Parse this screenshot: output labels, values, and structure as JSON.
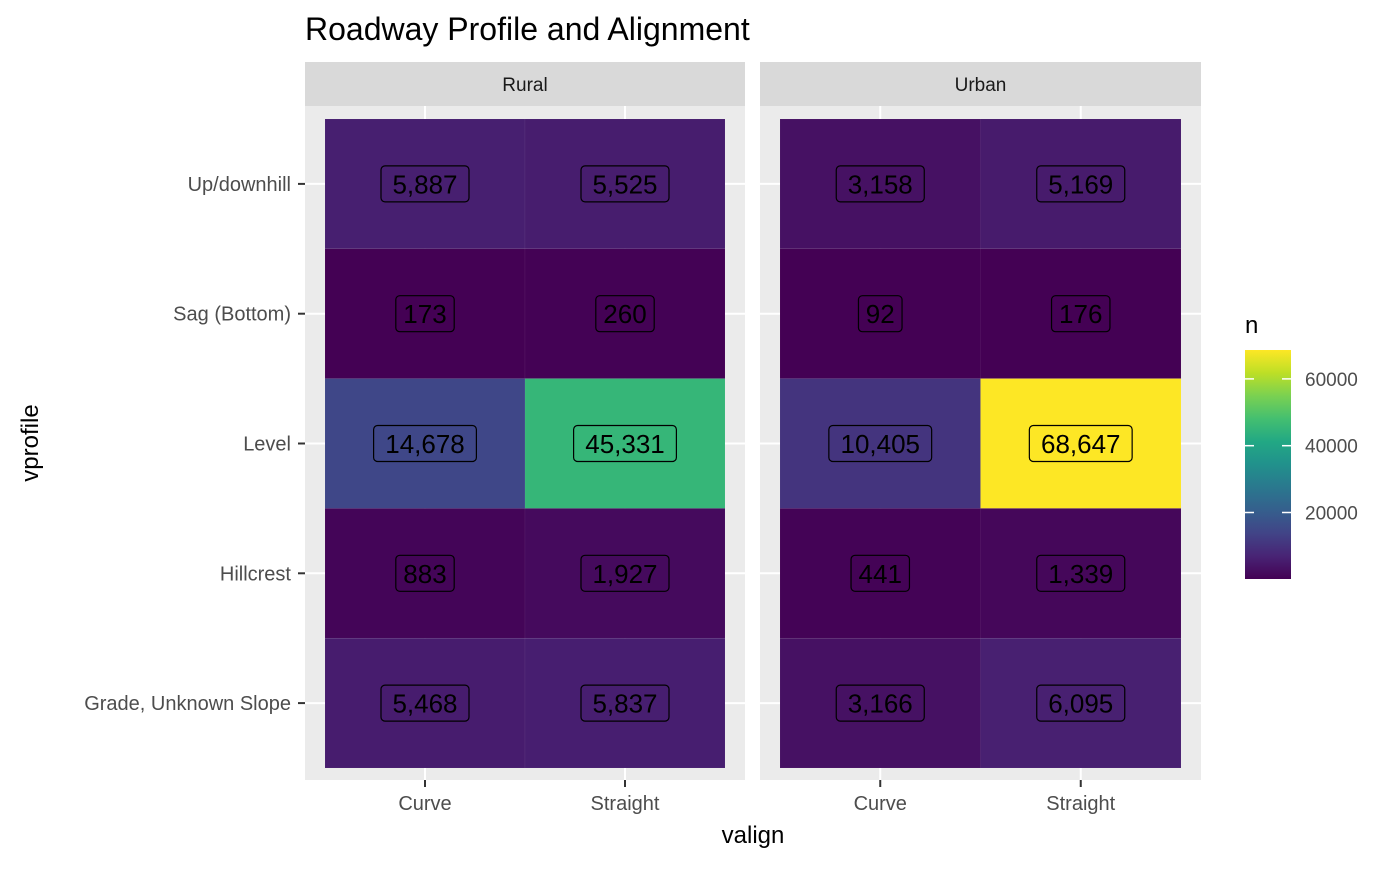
{
  "chart_data": {
    "type": "heatmap",
    "title": "Roadway Profile and Alignment",
    "xlabel": "valign",
    "ylabel": "vprofile",
    "facets": [
      "Rural",
      "Urban"
    ],
    "x_categories": [
      "Curve",
      "Straight"
    ],
    "y_categories": [
      "Up/downhill",
      "Sag (Bottom)",
      "Level",
      "Hillcrest",
      "Grade, Unknown Slope"
    ],
    "values": {
      "Rural": [
        [
          5887,
          5525
        ],
        [
          173,
          260
        ],
        [
          14678,
          45331
        ],
        [
          883,
          1927
        ],
        [
          5468,
          5837
        ]
      ],
      "Urban": [
        [
          3158,
          5169
        ],
        [
          92,
          176
        ],
        [
          10405,
          68647
        ],
        [
          441,
          1339
        ],
        [
          3166,
          6095
        ]
      ]
    },
    "labels": {
      "Rural": [
        [
          "5,887",
          "5,525"
        ],
        [
          "173",
          "260"
        ],
        [
          "14,678",
          "45,331"
        ],
        [
          "883",
          "1,927"
        ],
        [
          "5,468",
          "5,837"
        ]
      ],
      "Urban": [
        [
          "3,158",
          "5,169"
        ],
        [
          "92",
          "176"
        ],
        [
          "10,405",
          "68,647"
        ],
        [
          "441",
          "1,339"
        ],
        [
          "3,166",
          "6,095"
        ]
      ]
    },
    "legend": {
      "title": "n",
      "position": "right",
      "ticks": [
        20000,
        40000,
        60000
      ],
      "tick_labels": [
        "20000",
        "40000",
        "60000"
      ],
      "range": [
        92,
        68647
      ],
      "palette": "viridis"
    },
    "grid": true
  }
}
